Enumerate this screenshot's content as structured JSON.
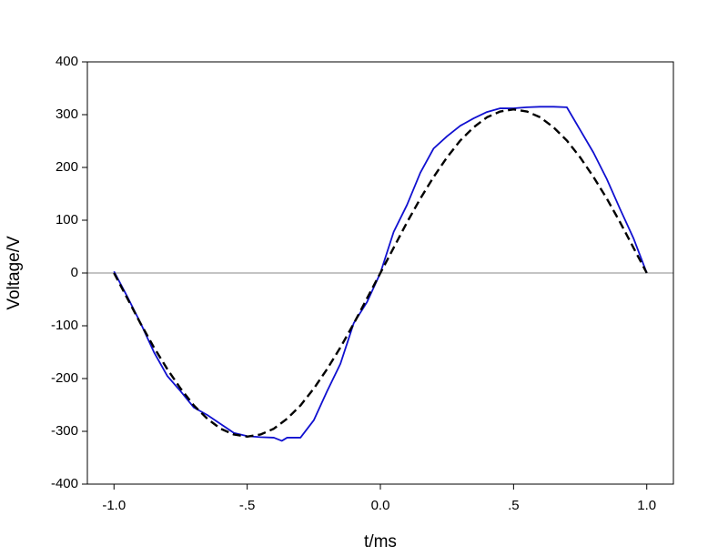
{
  "chart_data": {
    "type": "line",
    "x_label": "t/ms",
    "y_label": "Voltage/V",
    "xlim": [
      -1.1,
      1.1
    ],
    "ylim": [
      -400,
      400
    ],
    "xticks": [
      {
        "value": -1.0,
        "label": "-1.0"
      },
      {
        "value": -0.5,
        "label": "-.5"
      },
      {
        "value": 0,
        "label": "0.0"
      },
      {
        "value": 0.5,
        "label": ".5"
      },
      {
        "value": 1.0,
        "label": "1.0"
      }
    ],
    "yticks": [
      -400,
      -300,
      -200,
      -100,
      0,
      100,
      200,
      300,
      400
    ],
    "reference_line": 0,
    "reference_color": "#888888",
    "series": [
      {
        "color": "#1010d0",
        "dashed": false,
        "x": [
          -1.0,
          -0.95,
          -0.9,
          -0.85,
          -0.8,
          -0.75,
          -0.7,
          -0.65,
          -0.6,
          -0.55,
          -0.5,
          -0.45,
          -0.4,
          -0.37,
          -0.35,
          -0.3,
          -0.25,
          -0.2,
          -0.15,
          -0.1,
          -0.05,
          0,
          0.05,
          0.1,
          0.15,
          0.2,
          0.25,
          0.3,
          0.35,
          0.4,
          0.45,
          0.5,
          0.55,
          0.6,
          0.65,
          0.7,
          0.75,
          0.8,
          0.85,
          0.9,
          0.95,
          1.0
        ],
        "values": [
          3,
          -45,
          -95,
          -150,
          -195,
          -224,
          -255,
          -269,
          -286,
          -303,
          -309,
          -311,
          -312,
          -318,
          -312,
          -312,
          -279,
          -224,
          -172,
          -95,
          -55,
          0,
          78,
          129,
          190,
          236,
          259,
          279,
          293,
          305,
          312,
          312,
          314,
          315,
          315,
          314,
          271,
          228,
          178,
          121,
          66,
          0
        ]
      },
      {
        "color": "#000000",
        "dashed": true,
        "x": [
          -1.0,
          -0.95,
          -0.9,
          -0.85,
          -0.8,
          -0.75,
          -0.7,
          -0.65,
          -0.6,
          -0.55,
          -0.5,
          -0.45,
          -0.4,
          -0.35,
          -0.3,
          -0.25,
          -0.2,
          -0.15,
          -0.1,
          -0.05,
          0,
          0.05,
          0.1,
          0.15,
          0.2,
          0.25,
          0.3,
          0.35,
          0.4,
          0.45,
          0.5,
          0.55,
          0.6,
          0.65,
          0.7,
          0.75,
          0.8,
          0.85,
          0.9,
          0.95,
          1.0
        ],
        "values": [
          0,
          -48,
          -96,
          -141,
          -182,
          -219,
          -251,
          -276,
          -295,
          -306,
          -310,
          -306,
          -295,
          -276,
          -251,
          -219,
          -182,
          -141,
          -96,
          -48,
          0,
          48,
          96,
          141,
          182,
          219,
          251,
          276,
          295,
          306,
          310,
          306,
          295,
          276,
          251,
          219,
          182,
          141,
          96,
          48,
          0
        ]
      }
    ]
  }
}
